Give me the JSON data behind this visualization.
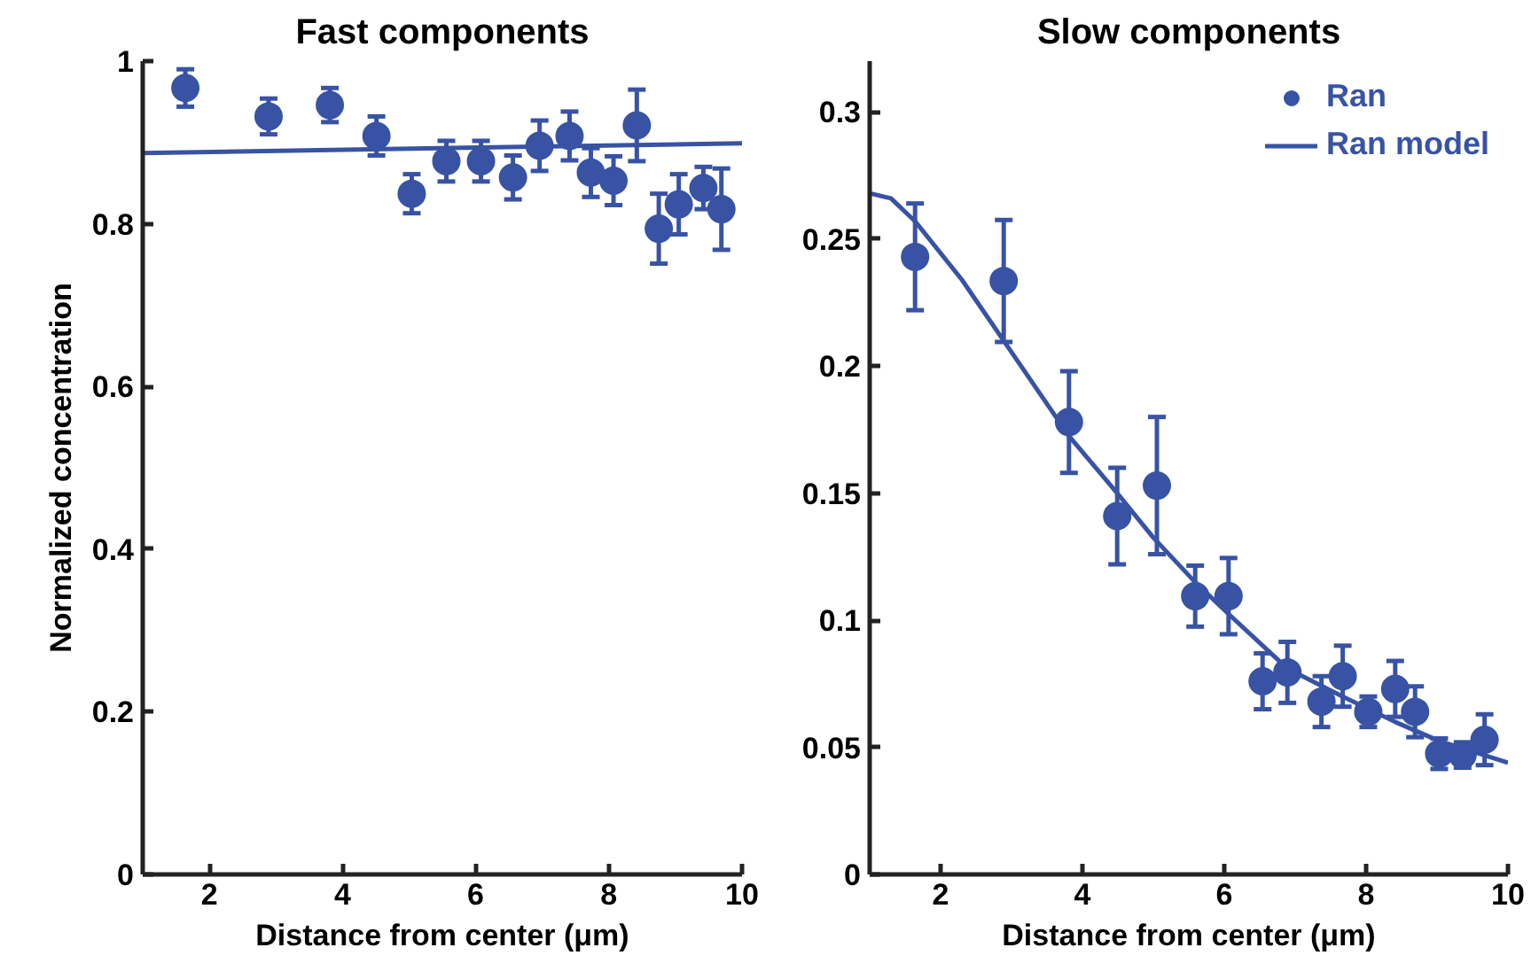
{
  "chart_data": [
    {
      "type": "scatter",
      "title": "Fast components",
      "xlabel": "Distance from center (μm)",
      "ylabel": "Normalized concentration",
      "xlim": [
        1,
        10
      ],
      "xticks": [
        2,
        4,
        6,
        8,
        10
      ],
      "ylim": [
        0,
        1
      ],
      "yticks": [
        0,
        0.2,
        0.4,
        0.6,
        0.8,
        1
      ],
      "grid": false,
      "series": [
        {
          "marker": "circle",
          "color": "#3853a4",
          "x": [
            1.64,
            2.89,
            3.81,
            4.51,
            5.04,
            5.56,
            6.08,
            6.56,
            6.96,
            7.41,
            7.73,
            8.07,
            8.42,
            8.75,
            9.05,
            9.42,
            9.69
          ],
          "values": [
            0.967,
            0.932,
            0.946,
            0.908,
            0.837,
            0.877,
            0.877,
            0.857,
            0.896,
            0.908,
            0.863,
            0.853,
            0.921,
            0.794,
            0.824,
            0.844,
            0.818
          ],
          "errors": [
            0.023,
            0.022,
            0.021,
            0.024,
            0.024,
            0.025,
            0.025,
            0.027,
            0.031,
            0.03,
            0.03,
            0.03,
            0.044,
            0.043,
            0.037,
            0.026,
            0.05
          ]
        },
        {
          "type": "line",
          "color": "#3853a4",
          "x": [
            1,
            10
          ],
          "values": [
            0.887,
            0.899
          ]
        }
      ]
    },
    {
      "type": "scatter",
      "title": "Slow components",
      "xlabel": "Distance from center (μm)",
      "xlim": [
        1,
        10
      ],
      "xticks": [
        2,
        4,
        6,
        8,
        10
      ],
      "ylim": [
        0,
        0.32
      ],
      "yticks": [
        0,
        0.05,
        0.1,
        0.15,
        0.2,
        0.25,
        0.3
      ],
      "grid": false,
      "legend": "top right",
      "series": [
        {
          "marker": "circle",
          "name": "Ran",
          "color": "#3853a4",
          "x": [
            1.64,
            2.89,
            3.81,
            4.49,
            5.05,
            5.59,
            6.06,
            6.54,
            6.89,
            7.37,
            7.67,
            8.03,
            8.41,
            8.69,
            9.03,
            9.36,
            9.67
          ],
          "values": [
            0.243,
            0.2335,
            0.178,
            0.141,
            0.153,
            0.1095,
            0.1095,
            0.076,
            0.0795,
            0.068,
            0.078,
            0.064,
            0.073,
            0.064,
            0.0475,
            0.047,
            0.053
          ],
          "errors": [
            0.021,
            0.024,
            0.02,
            0.019,
            0.027,
            0.012,
            0.015,
            0.011,
            0.012,
            0.01,
            0.012,
            0.006,
            0.011,
            0.01,
            0.006,
            0.005,
            0.01
          ]
        },
        {
          "type": "line",
          "name": "Ran model",
          "color": "#3853a4",
          "x": [
            1,
            1.3,
            1.64,
            2.3,
            2.89,
            3.81,
            4.49,
            5,
            5.59,
            6.06,
            6.89,
            7.67,
            8.41,
            9.03,
            10
          ],
          "values": [
            0.268,
            0.266,
            0.257,
            0.234,
            0.21,
            0.1725,
            0.15,
            0.1325,
            0.115,
            0.1025,
            0.081,
            0.07,
            0.06,
            0.0525,
            0.044
          ]
        }
      ]
    }
  ]
}
